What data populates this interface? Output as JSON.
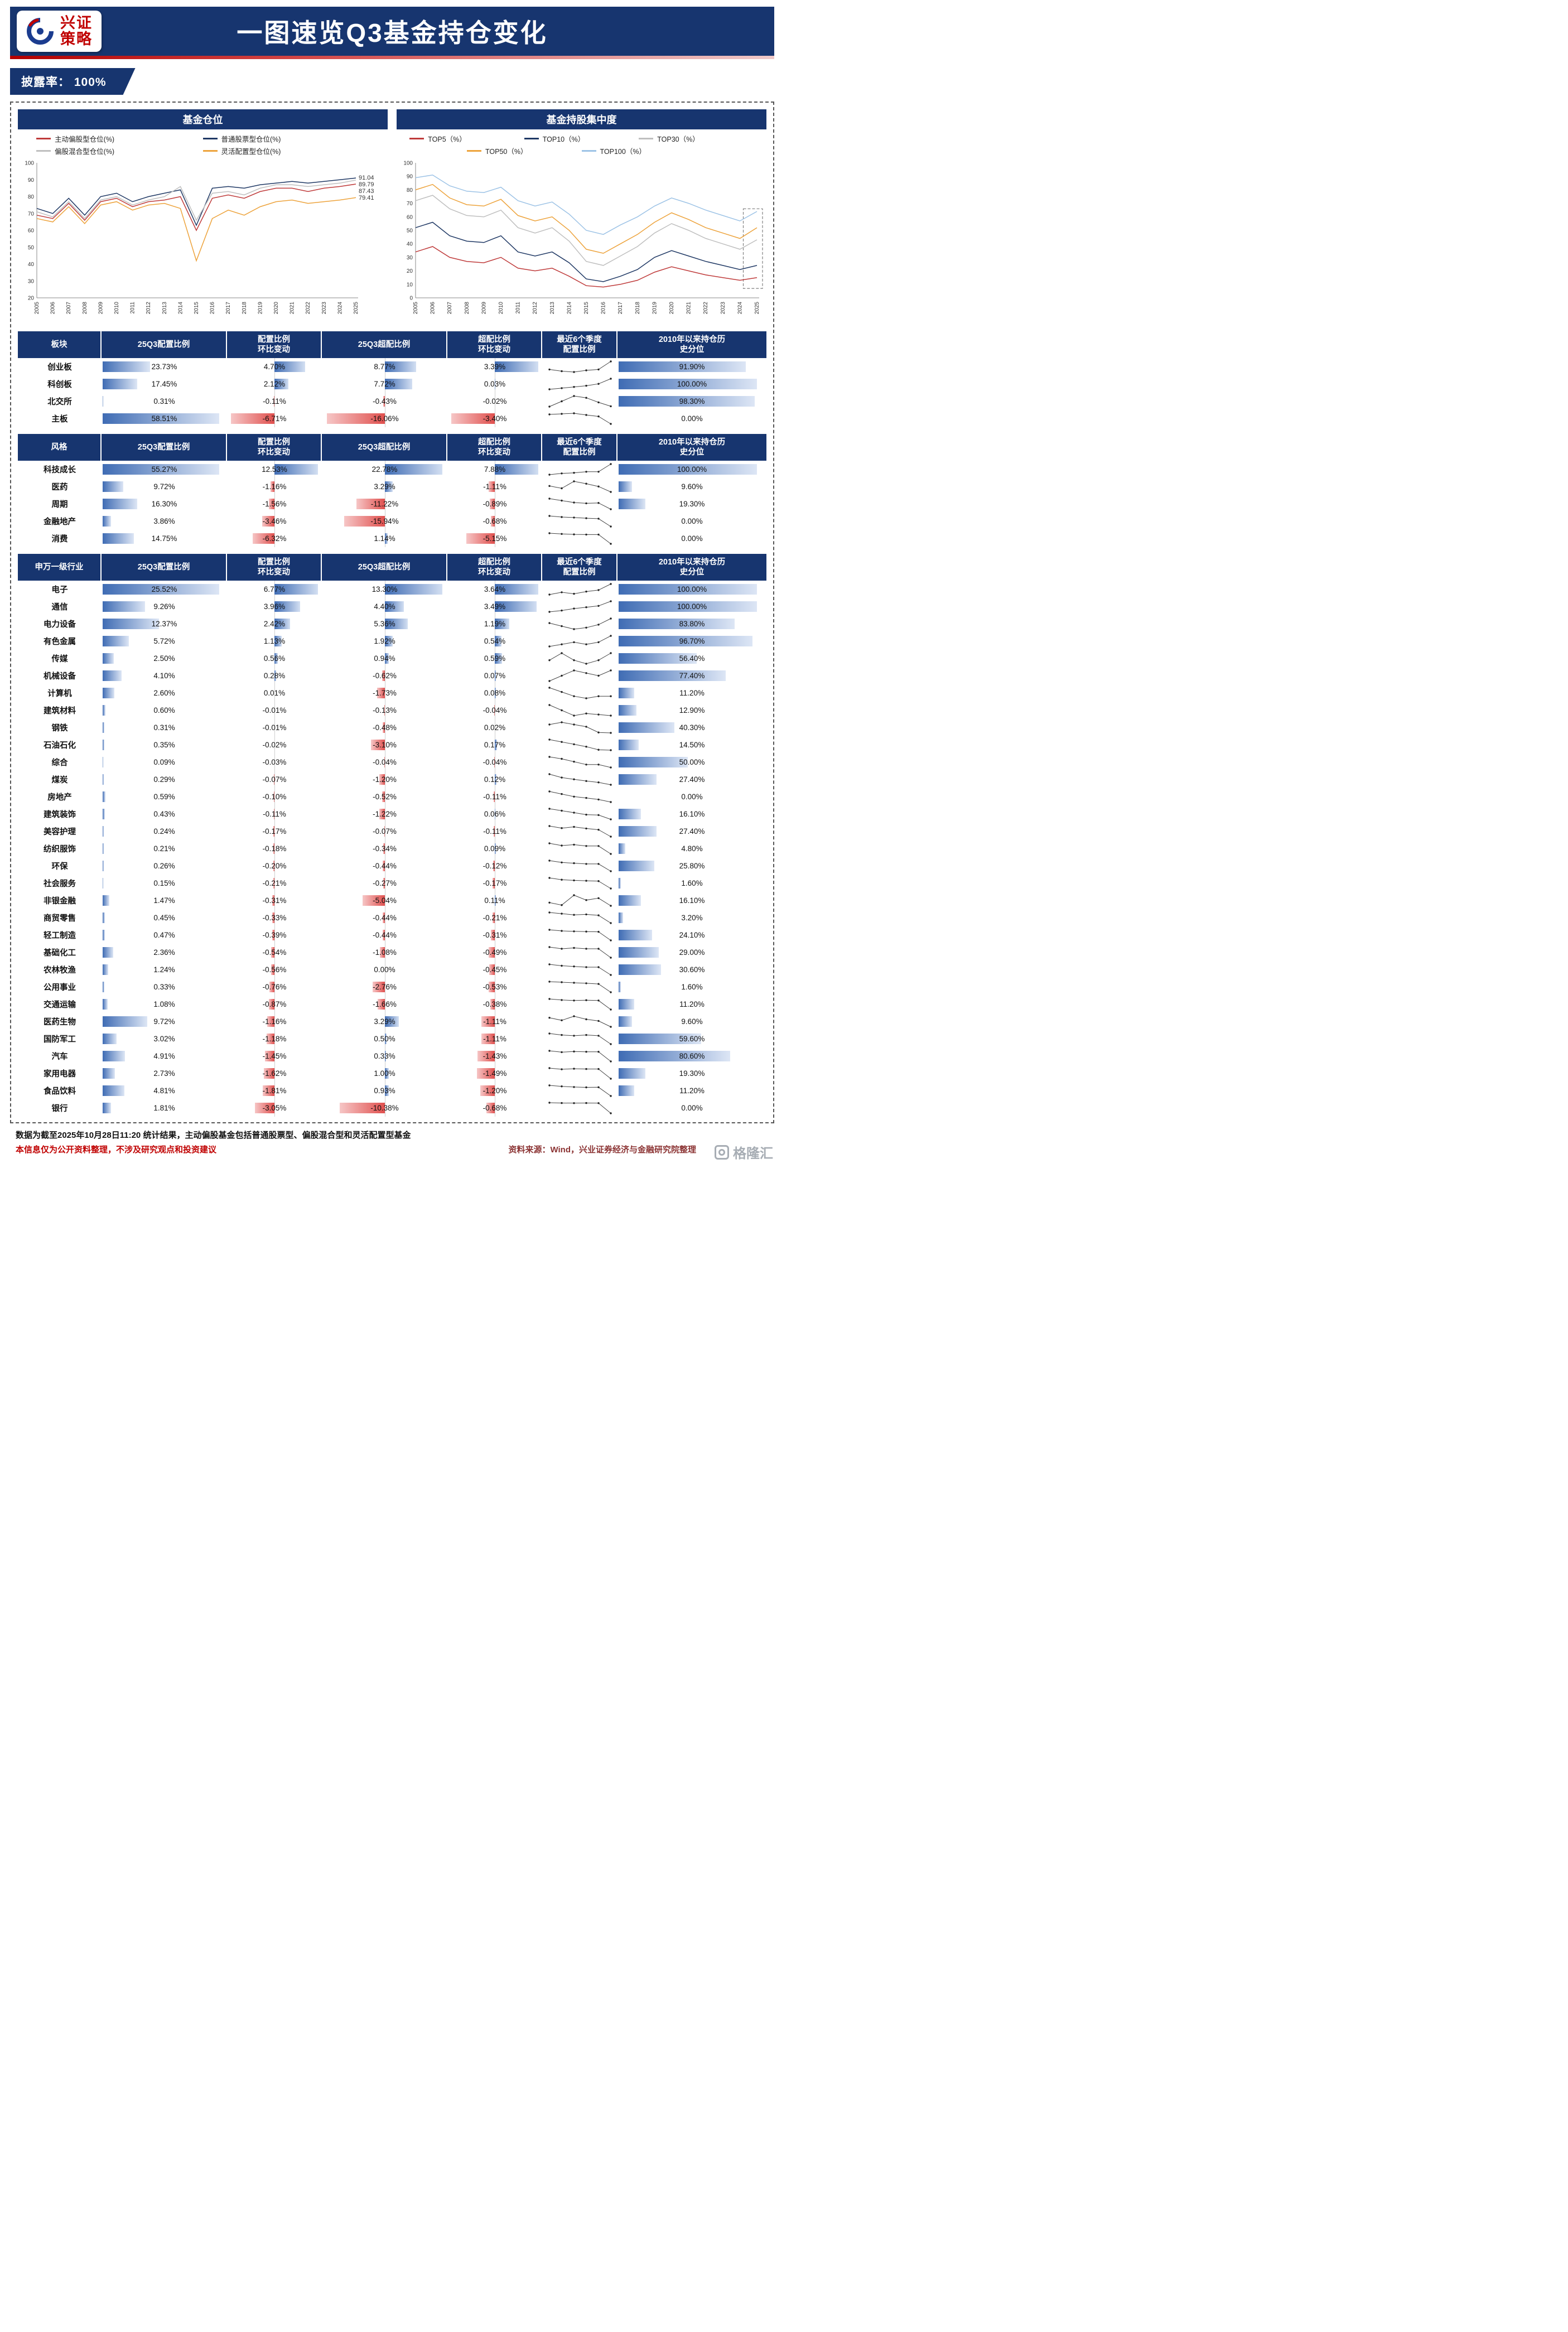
{
  "header": {
    "brand_line1": "兴证",
    "brand_line2": "策略",
    "title": "一图速览Q3基金持仓变化"
  },
  "badge": {
    "label": "披露率： 100%"
  },
  "chart_data": [
    {
      "type": "line",
      "title": "基金仓位",
      "x": [
        2005,
        2006,
        2007,
        2008,
        2009,
        2010,
        2011,
        2012,
        2013,
        2014,
        2015,
        2016,
        2017,
        2018,
        2019,
        2020,
        2021,
        2022,
        2023,
        2024,
        2025
      ],
      "ylim": [
        20,
        100
      ],
      "yticks": [
        20,
        30,
        40,
        50,
        60,
        70,
        80,
        90,
        100
      ],
      "series": [
        {
          "name": "主动偏股型仓位(%)",
          "color": "#bf3b3b",
          "values": [
            69,
            67,
            76,
            66,
            77,
            79,
            74,
            77,
            78,
            80,
            60,
            79,
            81,
            79,
            83,
            85,
            85,
            83,
            85,
            86,
            87.43
          ]
        },
        {
          "name": "普通股票型仓位(%)",
          "color": "#1f3864",
          "values": [
            73,
            70,
            79,
            69,
            80,
            82,
            77,
            80,
            82,
            84,
            63,
            85,
            86,
            85,
            87,
            88,
            89,
            88,
            89,
            90,
            91.04
          ]
        },
        {
          "name": "偏股混合型仓位(%)",
          "color": "#bfbfbf",
          "values": [
            71,
            68,
            77,
            67,
            78,
            80,
            75,
            78,
            80,
            86,
            66,
            82,
            83,
            81,
            85,
            87,
            87,
            86,
            87,
            88,
            89.79
          ]
        },
        {
          "name": "灵活配置型仓位(%)",
          "color": "#eda33c",
          "values": [
            67,
            65,
            74,
            64,
            75,
            77,
            72,
            75,
            76,
            73,
            42,
            67,
            72,
            69,
            74,
            77,
            78,
            76,
            77,
            78,
            79.41
          ]
        }
      ],
      "end_labels": [
        "91.04",
        "89.79",
        "87.43",
        "79.41"
      ],
      "legend_position": "top",
      "grid": false
    },
    {
      "type": "line",
      "title": "基金持股集中度",
      "x": [
        2005,
        2006,
        2007,
        2008,
        2009,
        2010,
        2011,
        2012,
        2013,
        2014,
        2015,
        2016,
        2017,
        2018,
        2019,
        2020,
        2021,
        2022,
        2023,
        2024,
        2025
      ],
      "ylim": [
        0,
        100
      ],
      "yticks": [
        0,
        10,
        20,
        30,
        40,
        50,
        60,
        70,
        80,
        90,
        100
      ],
      "series": [
        {
          "name": "TOP5（%）",
          "color": "#bf3b3b",
          "values": [
            34,
            38,
            30,
            27,
            26,
            30,
            22,
            20,
            22,
            16,
            9,
            8,
            10,
            13,
            19,
            23,
            20,
            17,
            15,
            13,
            15
          ]
        },
        {
          "name": "TOP10（%）",
          "color": "#1f3864",
          "values": [
            52,
            56,
            46,
            42,
            41,
            46,
            34,
            31,
            34,
            26,
            14,
            12,
            16,
            21,
            30,
            35,
            31,
            27,
            24,
            21,
            24
          ]
        },
        {
          "name": "TOP30（%）",
          "color": "#bfbfbf",
          "values": [
            72,
            76,
            66,
            61,
            60,
            65,
            52,
            48,
            52,
            42,
            27,
            24,
            31,
            38,
            48,
            55,
            50,
            44,
            40,
            36,
            43
          ]
        },
        {
          "name": "TOP50（%）",
          "color": "#eda33c",
          "values": [
            80,
            84,
            74,
            69,
            68,
            73,
            61,
            57,
            60,
            50,
            36,
            33,
            40,
            47,
            56,
            63,
            58,
            52,
            48,
            44,
            52
          ]
        },
        {
          "name": "TOP100（%）",
          "color": "#9dc3e6",
          "values": [
            89,
            91,
            83,
            79,
            78,
            82,
            72,
            68,
            71,
            62,
            50,
            47,
            54,
            60,
            68,
            74,
            70,
            65,
            61,
            57,
            64
          ]
        }
      ],
      "highlight": {
        "x_from": 2024.2,
        "y_from": 7,
        "y_to": 66
      },
      "legend_position": "top",
      "grid": false
    }
  ],
  "table_columns": [
    "25Q3配置比例",
    "配置比例\n环比变动",
    "25Q3超配比例",
    "超配比例\n环比变动",
    "最近6个季度\n配置比例",
    "2010年以来持仓历\n史分位"
  ],
  "tables": [
    {
      "group_label": "板块",
      "rows": [
        {
          "name": "创业板",
          "alloc": 23.73,
          "alloc_chg": 4.7,
          "over": 8.77,
          "over_chg": 3.39,
          "pct": 91.9,
          "trend": [
            19,
            18,
            17.5,
            18.5,
            19,
            23.73
          ]
        },
        {
          "name": "科创板",
          "alloc": 17.45,
          "alloc_chg": 2.12,
          "over": 7.72,
          "over_chg": 0.03,
          "pct": 100.0,
          "trend": [
            13,
            13.5,
            14,
            14.5,
            15.3,
            17.45
          ]
        },
        {
          "name": "北交所",
          "alloc": 0.31,
          "alloc_chg": -0.11,
          "over": -0.43,
          "over_chg": -0.02,
          "pct": 98.3,
          "trend": [
            0.3,
            0.45,
            0.6,
            0.55,
            0.42,
            0.31
          ]
        },
        {
          "name": "主板",
          "alloc": 58.51,
          "alloc_chg": -6.71,
          "over": -16.06,
          "over_chg": -3.4,
          "pct": 0.0,
          "trend": [
            67,
            67.5,
            68,
            66.5,
            65.2,
            58.51
          ]
        }
      ]
    },
    {
      "group_label": "风格",
      "rows": [
        {
          "name": "科技成长",
          "alloc": 55.27,
          "alloc_chg": 12.53,
          "over": 22.78,
          "over_chg": 7.88,
          "pct": 100.0,
          "trend": [
            38,
            40,
            41,
            42.7,
            42.7,
            55.27
          ]
        },
        {
          "name": "医药",
          "alloc": 9.72,
          "alloc_chg": -1.16,
          "over": 3.29,
          "over_chg": -1.11,
          "pct": 9.6,
          "trend": [
            11,
            10.5,
            12,
            11.5,
            10.9,
            9.72
          ]
        },
        {
          "name": "周期",
          "alloc": 16.3,
          "alloc_chg": -1.56,
          "over": -11.22,
          "over_chg": -0.89,
          "pct": 19.3,
          "trend": [
            19,
            18.5,
            18,
            17.8,
            17.9,
            16.3
          ]
        },
        {
          "name": "金融地产",
          "alloc": 3.86,
          "alloc_chg": -3.46,
          "over": -15.94,
          "over_chg": -0.68,
          "pct": 0.0,
          "trend": [
            8.5,
            8,
            7.8,
            7.5,
            7.3,
            3.86
          ]
        },
        {
          "name": "消费",
          "alloc": 14.75,
          "alloc_chg": -6.32,
          "over": 1.14,
          "over_chg": -5.15,
          "pct": 0.0,
          "trend": [
            22,
            21.5,
            21.2,
            21.1,
            21.1,
            14.75
          ]
        }
      ]
    },
    {
      "group_label": "申万一级行业",
      "rows": [
        {
          "name": "电子",
          "alloc": 25.52,
          "alloc_chg": 6.77,
          "over": 13.3,
          "over_chg": 3.64,
          "pct": 100.0,
          "trend": [
            3.2,
            3.5,
            3.3,
            3.6,
            3.8,
            4.6
          ]
        },
        {
          "name": "通信",
          "alloc": 9.26,
          "alloc_chg": 3.96,
          "over": 4.4,
          "over_chg": 3.49,
          "pct": 100.0,
          "trend": [
            1.0,
            1.2,
            1.5,
            1.7,
            1.9,
            2.6
          ]
        },
        {
          "name": "电力设备",
          "alloc": 12.37,
          "alloc_chg": 2.42,
          "over": 5.36,
          "over_chg": 1.19,
          "pct": 83.8,
          "trend": [
            2.2,
            2.0,
            1.8,
            1.9,
            2.1,
            2.5
          ]
        },
        {
          "name": "有色金属",
          "alloc": 5.72,
          "alloc_chg": 1.13,
          "over": 1.92,
          "over_chg": 0.54,
          "pct": 96.7,
          "trend": [
            1.0,
            1.1,
            1.2,
            1.1,
            1.2,
            1.5
          ]
        },
        {
          "name": "传媒",
          "alloc": 2.5,
          "alloc_chg": 0.56,
          "over": 0.94,
          "over_chg": 0.59,
          "pct": 56.4,
          "trend": [
            0.9,
            1.0,
            0.9,
            0.85,
            0.9,
            1.0
          ]
        },
        {
          "name": "机械设备",
          "alloc": 4.1,
          "alloc_chg": 0.28,
          "over": -0.62,
          "over_chg": 0.07,
          "pct": 77.4,
          "trend": [
            0.9,
            1.0,
            1.1,
            1.05,
            1.0,
            1.1
          ]
        },
        {
          "name": "计算机",
          "alloc": 2.6,
          "alloc_chg": 0.01,
          "over": -1.73,
          "over_chg": 0.08,
          "pct": 11.2,
          "trend": [
            1.2,
            1.1,
            1.0,
            0.95,
            1.0,
            1.0
          ]
        },
        {
          "name": "建筑材料",
          "alloc": 0.6,
          "alloc_chg": -0.01,
          "over": -0.13,
          "over_chg": -0.04,
          "pct": 12.9,
          "trend": [
            0.7,
            0.65,
            0.6,
            0.62,
            0.61,
            0.6
          ]
        },
        {
          "name": "钢铁",
          "alloc": 0.31,
          "alloc_chg": -0.01,
          "over": -0.48,
          "over_chg": 0.02,
          "pct": 40.3,
          "trend": [
            0.5,
            0.55,
            0.5,
            0.45,
            0.32,
            0.31
          ]
        },
        {
          "name": "石油石化",
          "alloc": 0.35,
          "alloc_chg": -0.02,
          "over": -3.1,
          "over_chg": 0.17,
          "pct": 14.5,
          "trend": [
            0.8,
            0.7,
            0.6,
            0.5,
            0.37,
            0.35
          ]
        },
        {
          "name": "综合",
          "alloc": 0.09,
          "alloc_chg": -0.03,
          "over": -0.04,
          "over_chg": -0.04,
          "pct": 50.0,
          "trend": [
            0.2,
            0.18,
            0.15,
            0.12,
            0.12,
            0.09
          ]
        },
        {
          "name": "煤炭",
          "alloc": 0.29,
          "alloc_chg": -0.07,
          "over": -1.2,
          "over_chg": 0.12,
          "pct": 27.4,
          "trend": [
            0.6,
            0.5,
            0.45,
            0.4,
            0.36,
            0.29
          ]
        },
        {
          "name": "房地产",
          "alloc": 0.59,
          "alloc_chg": -0.1,
          "over": -0.52,
          "over_chg": -0.11,
          "pct": 0.0,
          "trend": [
            1.0,
            0.9,
            0.8,
            0.75,
            0.69,
            0.59
          ]
        },
        {
          "name": "建筑装饰",
          "alloc": 0.43,
          "alloc_chg": -0.11,
          "over": -1.22,
          "over_chg": 0.06,
          "pct": 16.1,
          "trend": [
            0.7,
            0.65,
            0.6,
            0.55,
            0.54,
            0.43
          ]
        },
        {
          "name": "美容护理",
          "alloc": 0.24,
          "alloc_chg": -0.17,
          "over": -0.07,
          "over_chg": -0.11,
          "pct": 27.4,
          "trend": [
            0.5,
            0.45,
            0.48,
            0.44,
            0.41,
            0.24
          ]
        },
        {
          "name": "纺织服饰",
          "alloc": 0.21,
          "alloc_chg": -0.18,
          "over": -0.34,
          "over_chg": 0.09,
          "pct": 4.8,
          "trend": [
            0.45,
            0.4,
            0.42,
            0.39,
            0.39,
            0.21
          ]
        },
        {
          "name": "环保",
          "alloc": 0.26,
          "alloc_chg": -0.2,
          "over": -0.44,
          "over_chg": -0.12,
          "pct": 25.8,
          "trend": [
            0.55,
            0.5,
            0.48,
            0.46,
            0.46,
            0.26
          ]
        },
        {
          "name": "社会服务",
          "alloc": 0.15,
          "alloc_chg": -0.21,
          "over": -0.27,
          "over_chg": -0.17,
          "pct": 1.6,
          "trend": [
            0.45,
            0.4,
            0.38,
            0.37,
            0.36,
            0.15
          ]
        },
        {
          "name": "非银金融",
          "alloc": 1.47,
          "alloc_chg": -0.31,
          "over": -5.04,
          "over_chg": 0.11,
          "pct": 16.1,
          "trend": [
            1.6,
            1.5,
            1.9,
            1.7,
            1.78,
            1.47
          ]
        },
        {
          "name": "商贸零售",
          "alloc": 0.45,
          "alloc_chg": -0.33,
          "over": -0.44,
          "over_chg": -0.21,
          "pct": 3.2,
          "trend": [
            0.9,
            0.85,
            0.8,
            0.82,
            0.78,
            0.45
          ]
        },
        {
          "name": "轻工制造",
          "alloc": 0.47,
          "alloc_chg": -0.39,
          "over": -0.44,
          "over_chg": -0.31,
          "pct": 24.1,
          "trend": [
            0.95,
            0.9,
            0.88,
            0.87,
            0.86,
            0.47
          ]
        },
        {
          "name": "基础化工",
          "alloc": 2.36,
          "alloc_chg": -0.54,
          "over": -1.08,
          "over_chg": -0.49,
          "pct": 29.0,
          "trend": [
            3.0,
            2.9,
            2.95,
            2.9,
            2.9,
            2.36
          ]
        },
        {
          "name": "农林牧渔",
          "alloc": 1.24,
          "alloc_chg": -0.56,
          "over": 0.0,
          "over_chg": -0.45,
          "pct": 30.6,
          "trend": [
            2.0,
            1.9,
            1.85,
            1.8,
            1.8,
            1.24
          ]
        },
        {
          "name": "公用事业",
          "alloc": 0.33,
          "alloc_chg": -0.76,
          "over": -2.76,
          "over_chg": -0.53,
          "pct": 1.6,
          "trend": [
            1.3,
            1.25,
            1.2,
            1.15,
            1.09,
            0.33
          ]
        },
        {
          "name": "交通运输",
          "alloc": 1.08,
          "alloc_chg": -0.87,
          "over": -1.66,
          "over_chg": -0.38,
          "pct": 11.2,
          "trend": [
            2.1,
            2.0,
            1.95,
            1.98,
            1.95,
            1.08
          ]
        },
        {
          "name": "医药生物",
          "alloc": 9.72,
          "alloc_chg": -1.16,
          "over": 3.29,
          "over_chg": -1.11,
          "pct": 9.6,
          "trend": [
            11.5,
            11.0,
            11.8,
            11.2,
            10.88,
            9.72
          ]
        },
        {
          "name": "国防军工",
          "alloc": 3.02,
          "alloc_chg": -1.18,
          "over": 0.5,
          "over_chg": -1.11,
          "pct": 59.6,
          "trend": [
            4.5,
            4.3,
            4.2,
            4.3,
            4.2,
            3.02
          ]
        },
        {
          "name": "汽车",
          "alloc": 4.91,
          "alloc_chg": -1.45,
          "over": 0.33,
          "over_chg": -1.43,
          "pct": 80.6,
          "trend": [
            6.5,
            6.3,
            6.4,
            6.36,
            6.36,
            4.91
          ]
        },
        {
          "name": "家用电器",
          "alloc": 2.73,
          "alloc_chg": -1.62,
          "over": 1.0,
          "over_chg": -1.49,
          "pct": 19.3,
          "trend": [
            4.5,
            4.3,
            4.4,
            4.35,
            4.35,
            2.73
          ]
        },
        {
          "name": "食品饮料",
          "alloc": 4.81,
          "alloc_chg": -1.81,
          "over": 0.93,
          "over_chg": -1.2,
          "pct": 11.2,
          "trend": [
            7.0,
            6.8,
            6.66,
            6.6,
            6.62,
            4.81
          ]
        },
        {
          "name": "银行",
          "alloc": 1.81,
          "alloc_chg": -3.05,
          "over": -10.38,
          "over_chg": -0.68,
          "pct": 0.0,
          "trend": [
            5.0,
            4.9,
            4.86,
            4.9,
            4.86,
            1.81
          ]
        }
      ]
    }
  ],
  "footer": {
    "note1": "数据为截至2025年10月28日11:20 统计结果，主动偏股基金包括普通股票型、偏股混合型和灵活配置型基金",
    "note2": "本信息仅为公开资料整理，不涉及研究观点和投资建议",
    "source": "资料来源：Wind，兴业证券经济与金融研究院整理",
    "watermark": "格隆汇"
  }
}
